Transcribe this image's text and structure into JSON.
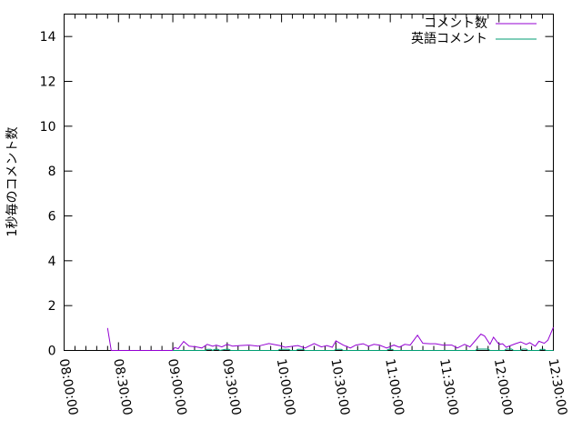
{
  "chart_data": {
    "type": "line",
    "title": "",
    "xlabel": "",
    "ylabel": "1秒毎のコメント数",
    "xlim": [
      "08:00:00",
      "12:30:00"
    ],
    "ylim": [
      0,
      15
    ],
    "x_ticks": [
      "08:00:00",
      "08:30:00",
      "09:00:00",
      "09:30:00",
      "10:00:00",
      "10:30:00",
      "11:00:00",
      "11:30:00",
      "12:00:00",
      "12:30:00"
    ],
    "y_ticks": [
      "0",
      "2",
      "4",
      "6",
      "8",
      "10",
      "12",
      "14"
    ],
    "grid": false,
    "legend": "top-right",
    "series": [
      {
        "name": "コメント数",
        "color": "#9400d3",
        "points": [
          [
            "08:24",
            1.0
          ],
          [
            "08:26",
            0
          ],
          [
            "08:40",
            0
          ],
          [
            "09:00",
            0
          ],
          [
            "09:01",
            0.13
          ],
          [
            "09:03",
            0.08
          ],
          [
            "09:06",
            0.4
          ],
          [
            "09:09",
            0.19
          ],
          [
            "09:13",
            0.16
          ],
          [
            "09:16",
            0.11
          ],
          [
            "09:19",
            0.27
          ],
          [
            "09:22",
            0.19
          ],
          [
            "09:24",
            0.24
          ],
          [
            "09:27",
            0.16
          ],
          [
            "09:30",
            0.27
          ],
          [
            "09:33",
            0.19
          ],
          [
            "09:37",
            0.22
          ],
          [
            "09:42",
            0.24
          ],
          [
            "09:47",
            0.19
          ],
          [
            "09:53",
            0.31
          ],
          [
            "09:59",
            0.22
          ],
          [
            "10:02",
            0.14
          ],
          [
            "10:09",
            0.22
          ],
          [
            "10:13",
            0.11
          ],
          [
            "10:18",
            0.31
          ],
          [
            "10:22",
            0.16
          ],
          [
            "10:25",
            0.22
          ],
          [
            "10:28",
            0.14
          ],
          [
            "10:30",
            0.43
          ],
          [
            "10:34",
            0.24
          ],
          [
            "10:38",
            0.11
          ],
          [
            "10:41",
            0.24
          ],
          [
            "10:45",
            0.3
          ],
          [
            "10:48",
            0.19
          ],
          [
            "10:51",
            0.27
          ],
          [
            "10:54",
            0.24
          ],
          [
            "10:58",
            0.11
          ],
          [
            "11:02",
            0.24
          ],
          [
            "11:05",
            0.14
          ],
          [
            "11:08",
            0.27
          ],
          [
            "11:11",
            0.24
          ],
          [
            "11:15",
            0.68
          ],
          [
            "11:18",
            0.32
          ],
          [
            "11:22",
            0.3
          ],
          [
            "11:25",
            0.3
          ],
          [
            "11:29",
            0.24
          ],
          [
            "11:34",
            0.24
          ],
          [
            "11:37",
            0.11
          ],
          [
            "11:41",
            0.27
          ],
          [
            "11:44",
            0.16
          ],
          [
            "11:50",
            0.73
          ],
          [
            "11:52",
            0.65
          ],
          [
            "11:55",
            0.27
          ],
          [
            "11:57",
            0.59
          ],
          [
            "12:00",
            0.27
          ],
          [
            "12:02",
            0.3
          ],
          [
            "12:04",
            0.14
          ],
          [
            "12:09",
            0.3
          ],
          [
            "12:12",
            0.38
          ],
          [
            "12:15",
            0.27
          ],
          [
            "12:17",
            0.35
          ],
          [
            "12:20",
            0.19
          ],
          [
            "12:22",
            0.41
          ],
          [
            "12:25",
            0.32
          ],
          [
            "12:27",
            0.46
          ],
          [
            "12:30",
            1.03
          ]
        ]
      },
      {
        "name": "英語コメント",
        "color": "#009e73",
        "points": [
          [
            "09:00",
            0
          ],
          [
            "09:18",
            0
          ],
          [
            "09:19",
            0.05
          ],
          [
            "09:21",
            0.05
          ],
          [
            "09:22",
            0
          ],
          [
            "09:23",
            0.05
          ],
          [
            "09:25",
            0.05
          ],
          [
            "09:26",
            0
          ],
          [
            "09:29",
            0.05
          ],
          [
            "09:31",
            0.05
          ],
          [
            "09:32",
            0
          ],
          [
            "09:58",
            0
          ],
          [
            "09:59",
            0.05
          ],
          [
            "10:04",
            0.05
          ],
          [
            "10:05",
            0
          ],
          [
            "10:08",
            0
          ],
          [
            "10:09",
            0.05
          ],
          [
            "10:12",
            0.05
          ],
          [
            "10:13",
            0
          ],
          [
            "10:29",
            0
          ],
          [
            "10:30",
            0.05
          ],
          [
            "10:33",
            0.05
          ],
          [
            "10:34",
            0
          ],
          [
            "10:58",
            0
          ],
          [
            "10:59",
            0.05
          ],
          [
            "11:01",
            0.05
          ],
          [
            "11:02",
            0
          ],
          [
            "11:47",
            0
          ],
          [
            "11:48",
            0.06
          ],
          [
            "11:54",
            0.06
          ],
          [
            "11:55",
            0
          ],
          [
            "12:03",
            0
          ],
          [
            "12:04",
            0.06
          ],
          [
            "12:07",
            0.06
          ],
          [
            "12:08",
            0
          ],
          [
            "12:12",
            0
          ],
          [
            "12:13",
            0.06
          ],
          [
            "12:15",
            0.06
          ],
          [
            "12:16",
            0
          ],
          [
            "12:22",
            0
          ],
          [
            "12:23",
            0.05
          ],
          [
            "12:25",
            0.05
          ],
          [
            "12:26",
            0
          ],
          [
            "12:30",
            0
          ]
        ]
      }
    ]
  }
}
